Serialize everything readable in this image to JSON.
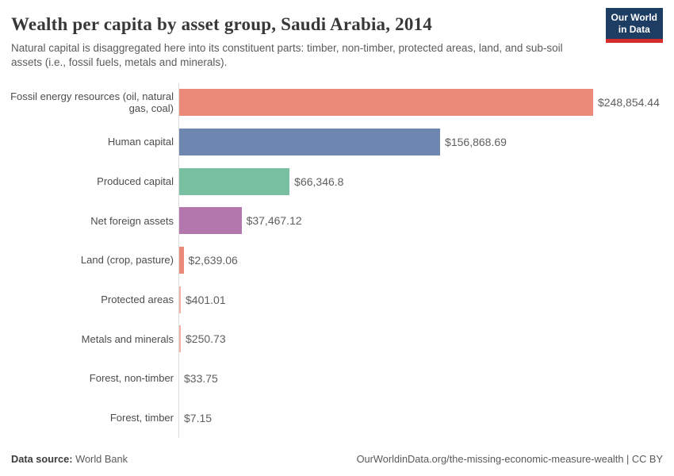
{
  "header": {
    "title": "Wealth per capita by asset group, Saudi Arabia, 2014",
    "subtitle": "Natural capital is disaggregated here into its constituent parts: timber, non-timber, protected areas, land, and sub-soil assets (i.e., fossil fuels, metals and minerals).",
    "logo": {
      "line1": "Our World",
      "line2": "in Data",
      "bg_color": "#1d3d63",
      "stripe_color": "#d42b2b"
    }
  },
  "chart_data": {
    "type": "bar",
    "orientation": "horizontal",
    "title": "Wealth per capita by asset group, Saudi Arabia, 2014",
    "xlabel": "",
    "ylabel": "",
    "grid": false,
    "legend": "none",
    "xlim": [
      0,
      248854.44
    ],
    "categories": [
      "Fossil energy resources (oil, natural gas, coal)",
      "Human capital",
      "Produced capital",
      "Net foreign assets",
      "Land (crop, pasture)",
      "Protected areas",
      "Metals and minerals",
      "Forest, non-timber",
      "Forest, timber"
    ],
    "values": [
      248854.44,
      156868.69,
      66346.8,
      37467.12,
      2639.06,
      401.01,
      250.73,
      33.75,
      7.15
    ],
    "value_labels": [
      "$248,854.44",
      "$156,868.69",
      "$66,346.8",
      "$37,467.12",
      "$2,639.06",
      "$401.01",
      "$250.73",
      "$33.75",
      "$7.15"
    ],
    "bar_colors": [
      "#eb8a79",
      "#6d87b0",
      "#79c0a2",
      "#b377ae",
      "#eb8a79",
      "#f2b3a6",
      "#f2b3a6",
      "#eb8a79",
      "#eb8a79"
    ],
    "axis_color": "#dcdcdc"
  },
  "footer": {
    "datasource_label": "Data source:",
    "datasource_value": "World Bank",
    "credit": "OurWorldinData.org/the-missing-economic-measure-wealth | CC BY"
  }
}
